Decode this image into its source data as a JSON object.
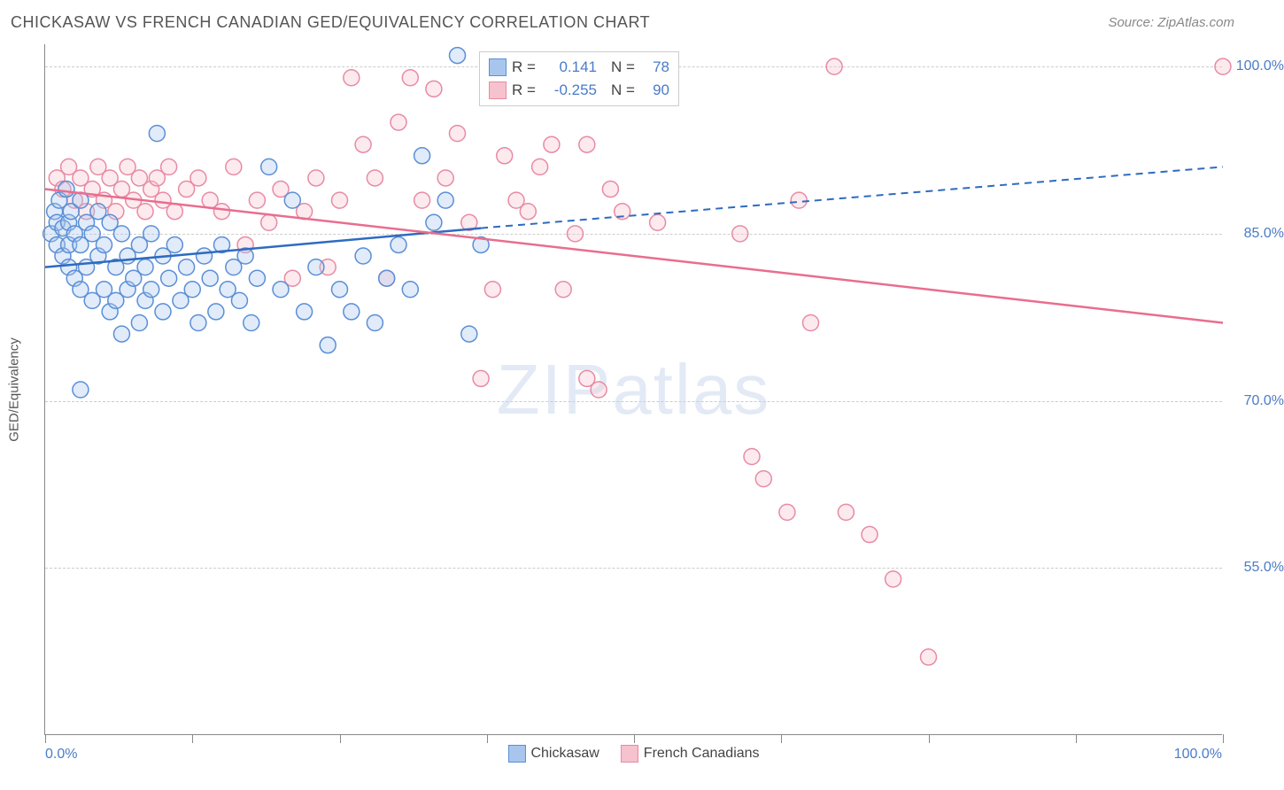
{
  "title": "CHICKASAW VS FRENCH CANADIAN GED/EQUIVALENCY CORRELATION CHART",
  "source": "Source: ZipAtlas.com",
  "watermark": "ZIPatlas",
  "yaxis_title": "GED/Equivalency",
  "chart": {
    "type": "scatter",
    "xlim": [
      0,
      100
    ],
    "ylim": [
      40,
      102
    ],
    "xticks": [
      0,
      12.5,
      25,
      37.5,
      50,
      62.5,
      75,
      87.5,
      100
    ],
    "yticks": [
      55,
      70,
      85,
      100
    ],
    "ytick_labels": [
      "55.0%",
      "70.0%",
      "85.0%",
      "100.0%"
    ],
    "xaxis_label_left": "0.0%",
    "xaxis_label_right": "100.0%",
    "background_color": "#ffffff",
    "grid_color": "#cccccc",
    "marker_radius": 9,
    "marker_stroke_width": 1.5,
    "marker_fill_opacity": 0.35,
    "regression_line_width": 2.5
  },
  "series": {
    "blue": {
      "label": "Chickasaw",
      "fill": "#a8c6ed",
      "stroke": "#5a8fd6",
      "line_color": "#2e6bc0",
      "R": "0.141",
      "N": "78",
      "regression": {
        "x1": 0,
        "y1": 82,
        "x2_solid": 37,
        "y2_solid": 85.5,
        "x2_dash": 100,
        "y2_dash": 91
      },
      "points": [
        [
          0.5,
          85
        ],
        [
          0.8,
          87
        ],
        [
          1,
          86
        ],
        [
          1,
          84
        ],
        [
          1.2,
          88
        ],
        [
          1.5,
          85.5
        ],
        [
          1.5,
          83
        ],
        [
          1.8,
          89
        ],
        [
          2,
          86
        ],
        [
          2,
          84
        ],
        [
          2,
          82
        ],
        [
          2.2,
          87
        ],
        [
          2.5,
          85
        ],
        [
          2.5,
          81
        ],
        [
          3,
          88
        ],
        [
          3,
          84
        ],
        [
          3,
          80
        ],
        [
          3.5,
          86
        ],
        [
          3.5,
          82
        ],
        [
          4,
          85
        ],
        [
          4,
          79
        ],
        [
          4.5,
          87
        ],
        [
          4.5,
          83
        ],
        [
          5,
          84
        ],
        [
          5,
          80
        ],
        [
          5.5,
          86
        ],
        [
          5.5,
          78
        ],
        [
          6,
          82
        ],
        [
          6,
          79
        ],
        [
          6.5,
          85
        ],
        [
          6.5,
          76
        ],
        [
          7,
          83
        ],
        [
          7,
          80
        ],
        [
          7.5,
          81
        ],
        [
          8,
          84
        ],
        [
          8,
          77
        ],
        [
          8.5,
          82
        ],
        [
          8.5,
          79
        ],
        [
          9,
          85
        ],
        [
          9,
          80
        ],
        [
          9.5,
          94
        ],
        [
          10,
          83
        ],
        [
          10,
          78
        ],
        [
          10.5,
          81
        ],
        [
          11,
          84
        ],
        [
          11.5,
          79
        ],
        [
          12,
          82
        ],
        [
          12.5,
          80
        ],
        [
          13,
          77
        ],
        [
          13.5,
          83
        ],
        [
          14,
          81
        ],
        [
          14.5,
          78
        ],
        [
          15,
          84
        ],
        [
          15.5,
          80
        ],
        [
          16,
          82
        ],
        [
          16.5,
          79
        ],
        [
          17,
          83
        ],
        [
          17.5,
          77
        ],
        [
          18,
          81
        ],
        [
          19,
          91
        ],
        [
          20,
          80
        ],
        [
          21,
          88
        ],
        [
          22,
          78
        ],
        [
          23,
          82
        ],
        [
          24,
          75
        ],
        [
          25,
          80
        ],
        [
          26,
          78
        ],
        [
          27,
          83
        ],
        [
          28,
          77
        ],
        [
          29,
          81
        ],
        [
          30,
          84
        ],
        [
          31,
          80
        ],
        [
          32,
          92
        ],
        [
          33,
          86
        ],
        [
          34,
          88
        ],
        [
          35,
          101
        ],
        [
          36,
          76
        ],
        [
          37,
          84
        ],
        [
          3,
          71
        ]
      ]
    },
    "pink": {
      "label": "French Canadians",
      "fill": "#f5c2ce",
      "stroke": "#e88ba3",
      "line_color": "#e96d8f",
      "R": "-0.255",
      "N": "90",
      "regression": {
        "x1": 0,
        "y1": 89,
        "x2_solid": 100,
        "y2_solid": 77,
        "x2_dash": 100,
        "y2_dash": 77
      },
      "points": [
        [
          1,
          90
        ],
        [
          1.5,
          89
        ],
        [
          2,
          91
        ],
        [
          2.5,
          88
        ],
        [
          3,
          90
        ],
        [
          3.5,
          87
        ],
        [
          4,
          89
        ],
        [
          4.5,
          91
        ],
        [
          5,
          88
        ],
        [
          5.5,
          90
        ],
        [
          6,
          87
        ],
        [
          6.5,
          89
        ],
        [
          7,
          91
        ],
        [
          7.5,
          88
        ],
        [
          8,
          90
        ],
        [
          8.5,
          87
        ],
        [
          9,
          89
        ],
        [
          9.5,
          90
        ],
        [
          10,
          88
        ],
        [
          10.5,
          91
        ],
        [
          11,
          87
        ],
        [
          12,
          89
        ],
        [
          13,
          90
        ],
        [
          14,
          88
        ],
        [
          15,
          87
        ],
        [
          16,
          91
        ],
        [
          17,
          84
        ],
        [
          18,
          88
        ],
        [
          19,
          86
        ],
        [
          20,
          89
        ],
        [
          21,
          81
        ],
        [
          22,
          87
        ],
        [
          23,
          90
        ],
        [
          24,
          82
        ],
        [
          25,
          88
        ],
        [
          26,
          99
        ],
        [
          27,
          93
        ],
        [
          28,
          90
        ],
        [
          29,
          81
        ],
        [
          30,
          95
        ],
        [
          31,
          99
        ],
        [
          32,
          88
        ],
        [
          33,
          98
        ],
        [
          34,
          90
        ],
        [
          35,
          94
        ],
        [
          36,
          86
        ],
        [
          37,
          72
        ],
        [
          38,
          80
        ],
        [
          39,
          92
        ],
        [
          40,
          88
        ],
        [
          41,
          87
        ],
        [
          42,
          91
        ],
        [
          43,
          93
        ],
        [
          44,
          80
        ],
        [
          45,
          85
        ],
        [
          46,
          93
        ],
        [
          46,
          72
        ],
        [
          47,
          71
        ],
        [
          48,
          89
        ],
        [
          49,
          87
        ],
        [
          52,
          86
        ],
        [
          59,
          85
        ],
        [
          60,
          65
        ],
        [
          61,
          63
        ],
        [
          63,
          60
        ],
        [
          64,
          88
        ],
        [
          65,
          77
        ],
        [
          67,
          100
        ],
        [
          68,
          60
        ],
        [
          70,
          58
        ],
        [
          72,
          54
        ],
        [
          75,
          47
        ],
        [
          100,
          100
        ]
      ]
    }
  },
  "stat_legend": {
    "rows": [
      {
        "series": "blue",
        "R_label": "R =",
        "N_label": "N ="
      },
      {
        "series": "pink",
        "R_label": "R =",
        "N_label": "N ="
      }
    ]
  }
}
